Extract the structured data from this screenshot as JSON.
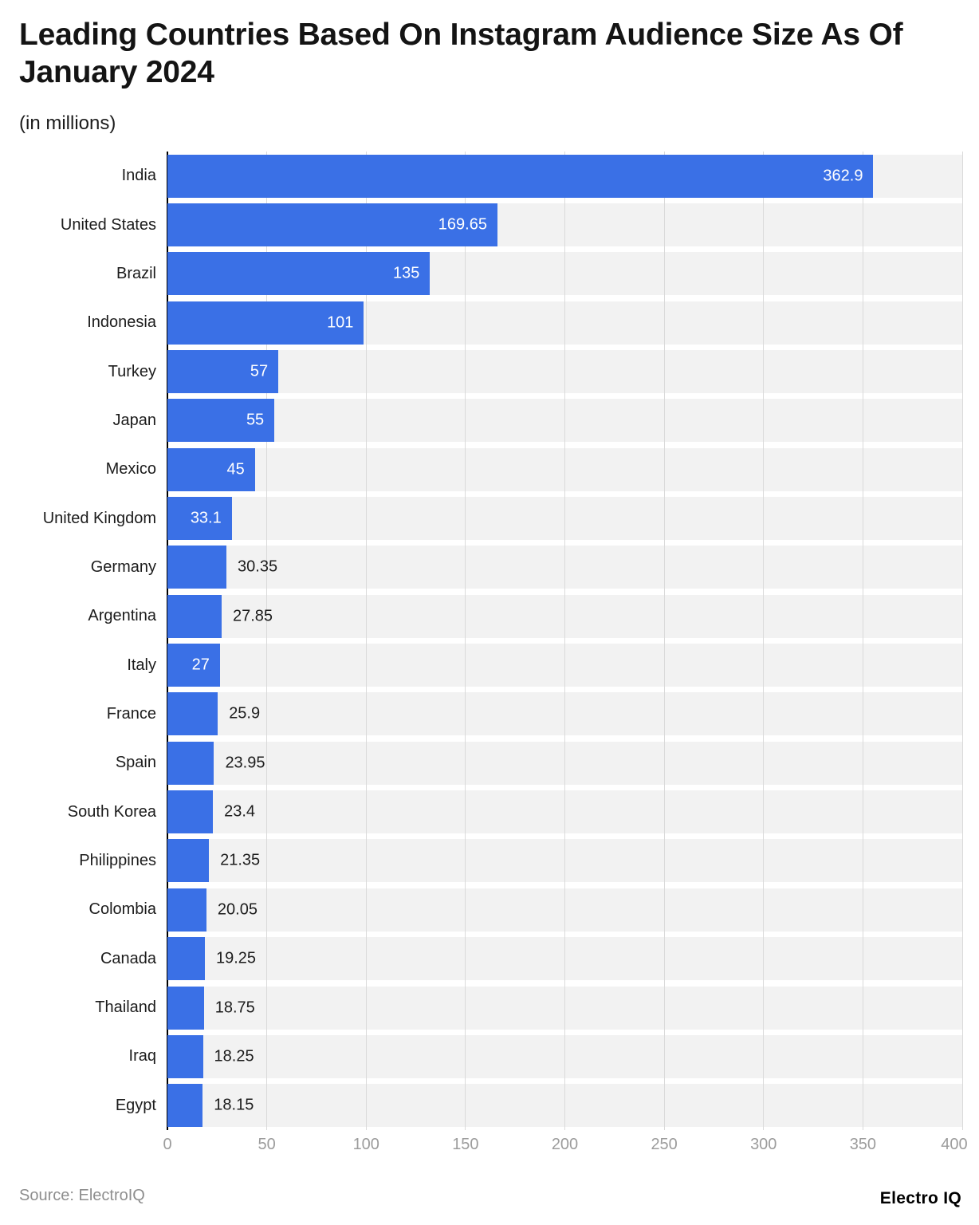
{
  "title": {
    "line1": "Leading Countries Based On Instagram Audience Size As Of",
    "line2": "January 2024"
  },
  "subtitle": "(in millions)",
  "source": {
    "label": "Source: ElectroIQ",
    "brand": "Electro IQ"
  },
  "chart_data": {
    "type": "bar",
    "orientation": "horizontal",
    "title": "Leading Countries Based On Instagram Audience Size As Of January 2024",
    "unit": "millions",
    "categories": [
      "India",
      "United States",
      "Brazil",
      "Indonesia",
      "Turkey",
      "Japan",
      "Mexico",
      "United Kingdom",
      "Germany",
      "Argentina",
      "Italy",
      "France",
      "Spain",
      "South Korea",
      "Philippines",
      "Colombia",
      "Canada",
      "Thailand",
      "Iraq",
      "Egypt"
    ],
    "values": [
      362.9,
      169.65,
      135,
      101,
      57,
      55,
      45,
      33.1,
      30.35,
      27.85,
      27,
      25.9,
      23.95,
      23.4,
      21.35,
      20.05,
      19.25,
      18.75,
      18.25,
      18.15
    ],
    "value_labels": [
      "362.9",
      "169.65",
      "135",
      "101",
      "57",
      "55",
      "45",
      "33.1",
      "30.35",
      "27.85",
      "27",
      "25.9",
      "23.95",
      "23.4",
      "21.35",
      "20.05",
      "19.25",
      "18.75",
      "18.25",
      "18.15"
    ],
    "labels_inside": [
      true,
      true,
      true,
      true,
      true,
      true,
      true,
      true,
      false,
      false,
      true,
      false,
      false,
      false,
      false,
      false,
      false,
      false,
      false,
      false
    ],
    "xlabel": "",
    "ylabel": "",
    "xlim": [
      0,
      400
    ],
    "x_ticks": [
      0,
      50,
      100,
      150,
      200,
      250,
      300,
      350,
      400
    ],
    "grid": true,
    "legend": "none",
    "colors": {
      "bar": "#3a70e6",
      "track": "#f2f2f2",
      "gridline": "#dadada",
      "axis_line": "#000000",
      "tick_label": "#9c9c9c",
      "value_inside": "#ffffff",
      "value_outside": "#1c1c1c",
      "category_label": "#1c1c1c"
    }
  }
}
